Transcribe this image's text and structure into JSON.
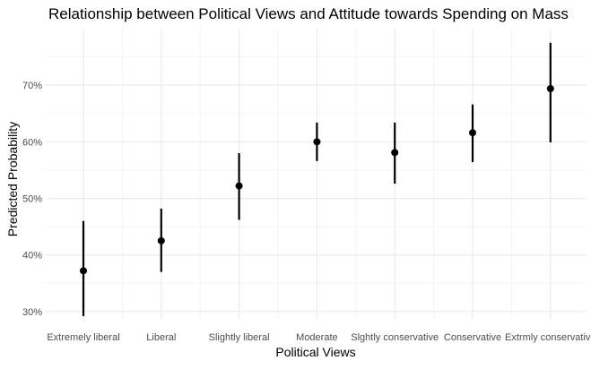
{
  "chart_data": {
    "type": "scatter",
    "subtype": "point-range",
    "title": "Relationship between Political Views and Attitude towards Spending on Mass",
    "xlabel": "Political Views",
    "ylabel": "Predicted Probability",
    "categories": [
      "Extremely liberal",
      "Liberal",
      "Slightly liberal",
      "Moderate",
      "Slghtly conservative",
      "Conservative",
      "Extrmly conservative"
    ],
    "estimates": [
      37.2,
      42.5,
      52.2,
      60.0,
      58.1,
      61.6,
      69.4
    ],
    "lower": [
      29.2,
      37.0,
      46.2,
      56.6,
      52.6,
      56.4,
      59.9
    ],
    "upper": [
      46.0,
      48.2,
      58.0,
      63.4,
      63.4,
      66.6,
      77.5
    ],
    "y_ticks": [
      30,
      40,
      50,
      60,
      70
    ],
    "y_tick_labels": [
      "30%",
      "40%",
      "50%",
      "60%",
      "70%"
    ],
    "ylim": [
      28.7,
      80.0
    ],
    "grid": true,
    "legend": "none",
    "colors": {
      "point": "#000000",
      "grid_major": "#ebebeb",
      "grid_minor": "#f5f5f5",
      "text": "#4d4d4d",
      "title": "#000000"
    }
  }
}
